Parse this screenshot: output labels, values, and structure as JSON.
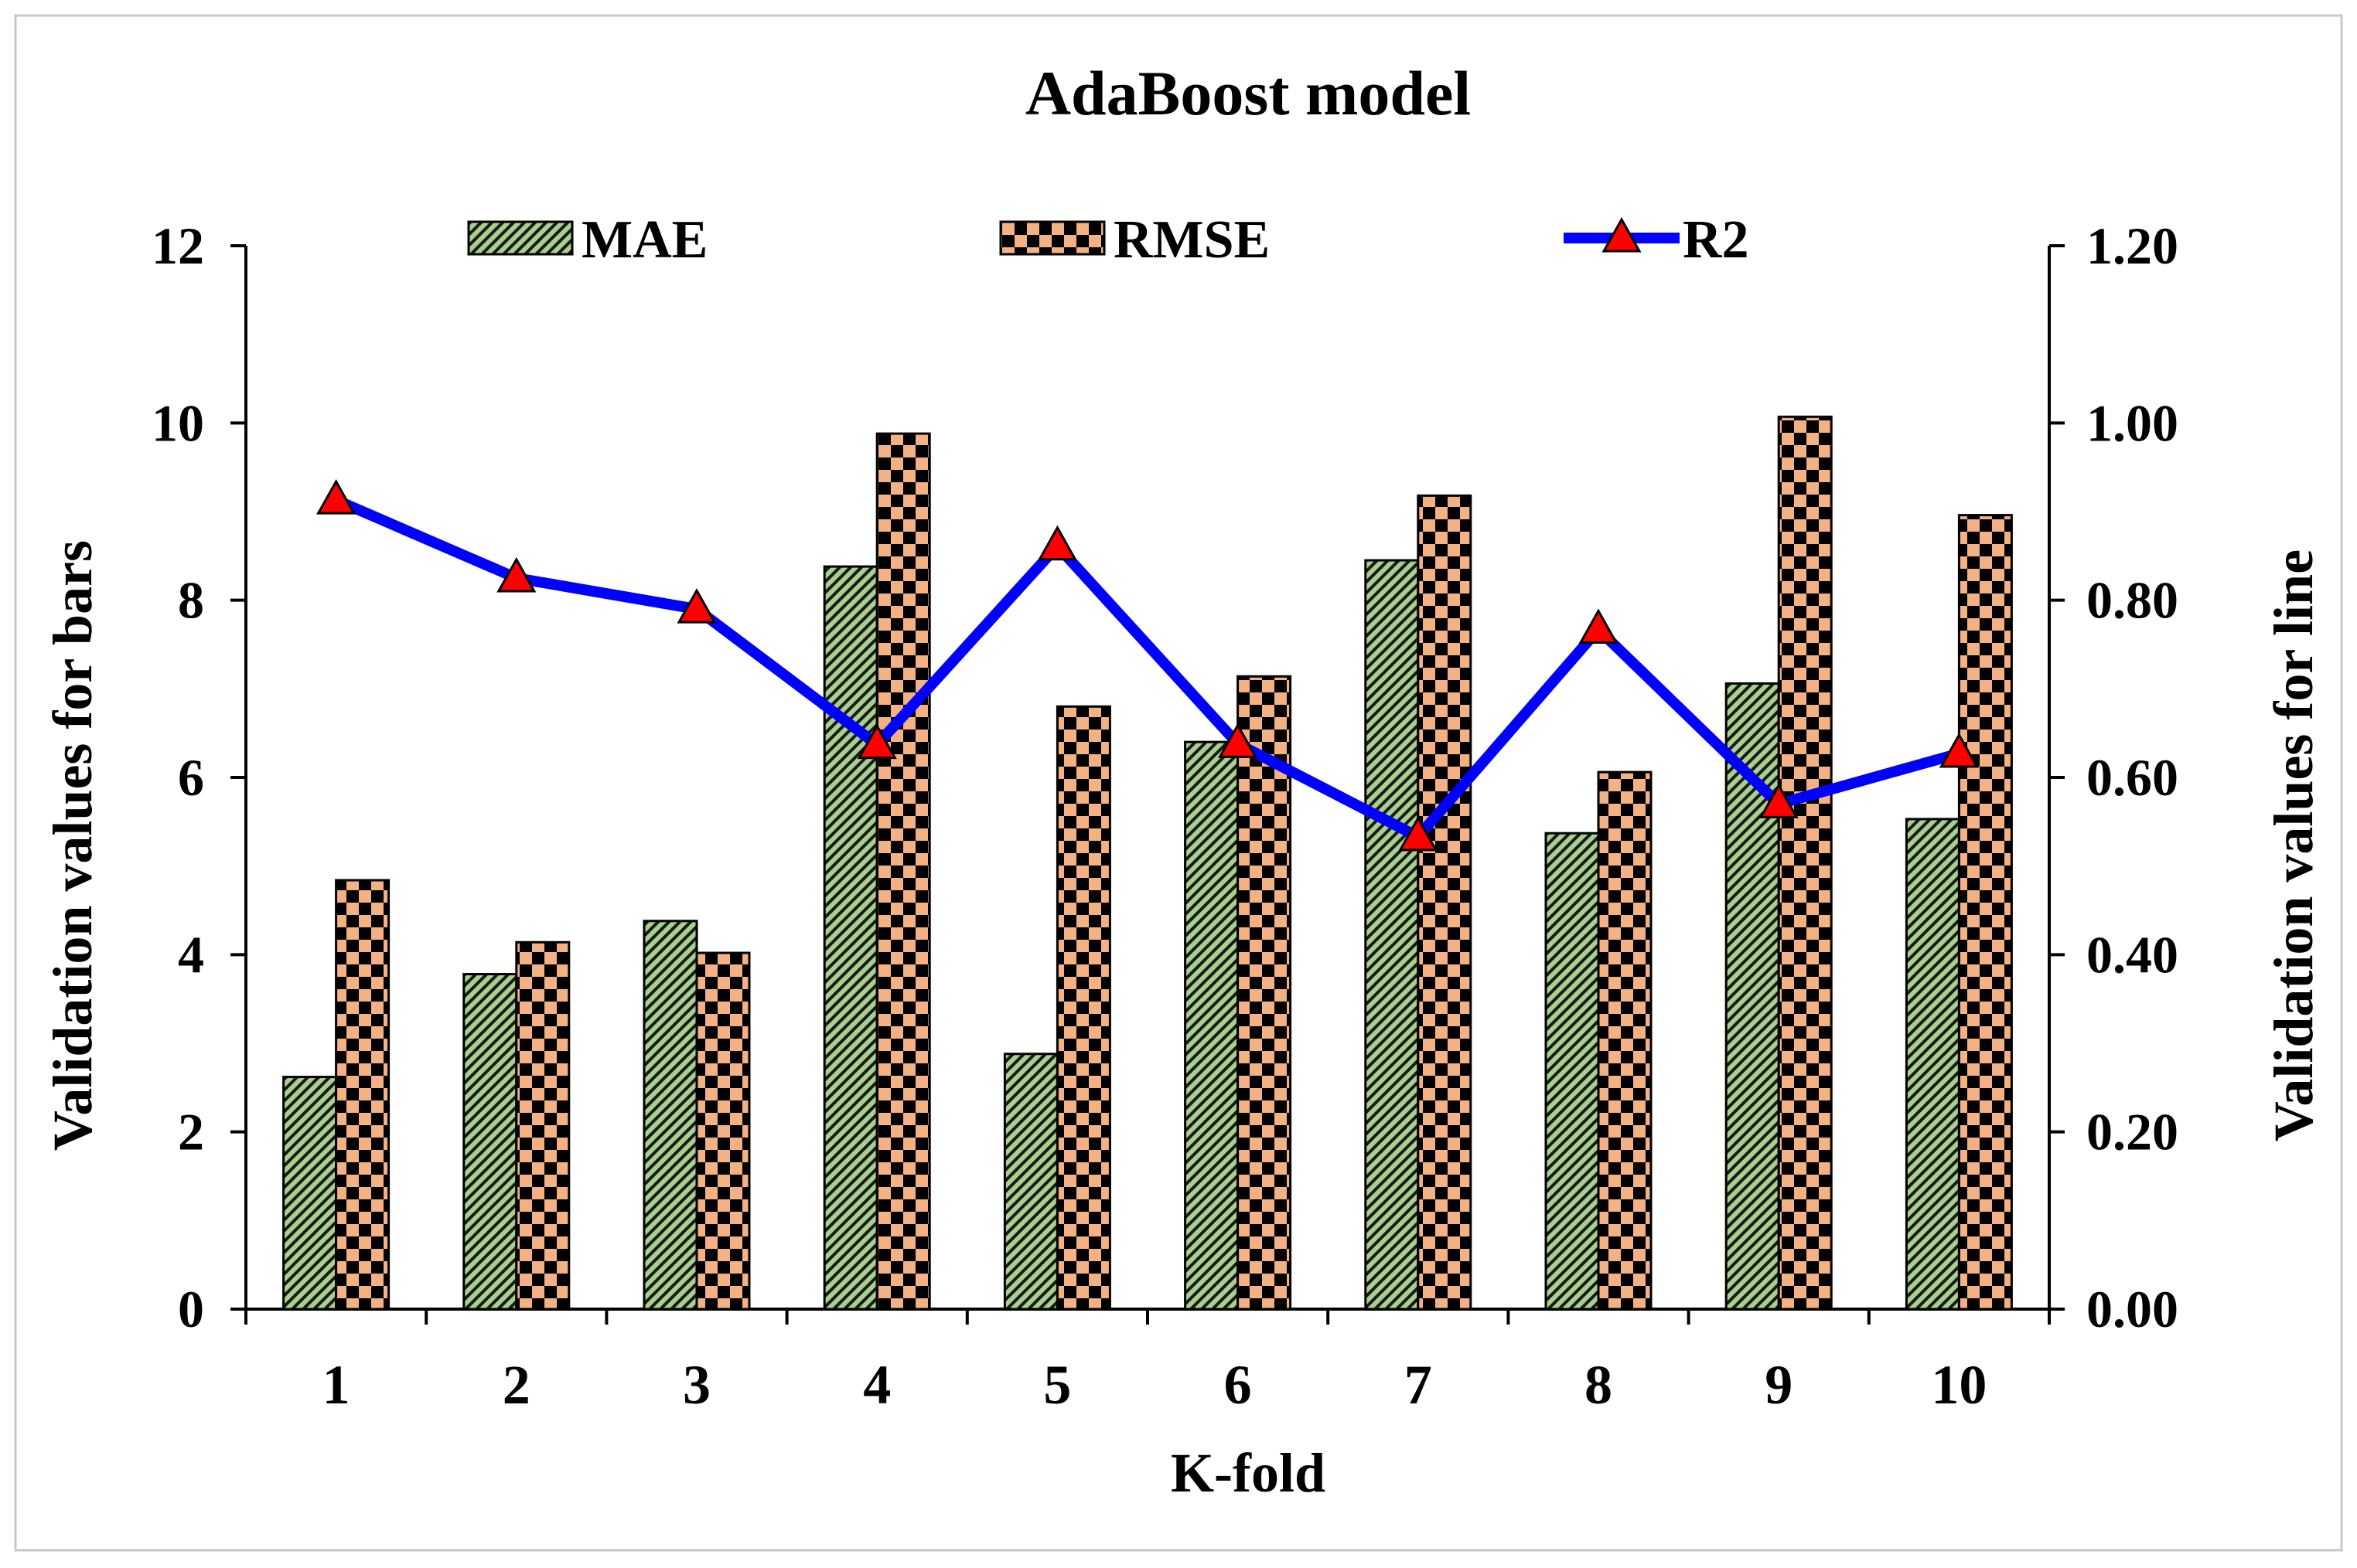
{
  "chart_data": {
    "type": "bar",
    "title": "AdaBoost model",
    "xlabel": "K-fold",
    "ylabel": "Validation values for bars",
    "y2label": "Validation values for line",
    "categories": [
      "1",
      "2",
      "3",
      "4",
      "5",
      "6",
      "7",
      "8",
      "9",
      "10"
    ],
    "ylim": [
      0,
      12
    ],
    "y2lim": [
      0,
      1.2
    ],
    "yticks": [
      "0",
      "2",
      "4",
      "6",
      "8",
      "10",
      "12"
    ],
    "y2ticks": [
      "0.00",
      "0.20",
      "0.40",
      "0.60",
      "0.80",
      "1.00",
      "1.20"
    ],
    "legend_position": "top",
    "series": [
      {
        "name": "MAE",
        "kind": "bar",
        "axis": "left",
        "color": "#a9d18e",
        "values": [
          2.62,
          3.78,
          4.38,
          8.38,
          2.88,
          6.4,
          8.45,
          5.37,
          7.06,
          5.53
        ]
      },
      {
        "name": "RMSE",
        "kind": "bar",
        "axis": "left",
        "color": "#f4b183",
        "values": [
          4.84,
          4.14,
          4.02,
          9.88,
          6.8,
          7.14,
          9.18,
          6.06,
          10.07,
          8.96
        ]
      },
      {
        "name": "R2",
        "kind": "line",
        "axis": "right",
        "color": "#0000ff",
        "marker_color": "#ff0000",
        "values": [
          0.913,
          0.825,
          0.79,
          0.637,
          0.861,
          0.638,
          0.533,
          0.767,
          0.57,
          0.627
        ]
      }
    ]
  }
}
